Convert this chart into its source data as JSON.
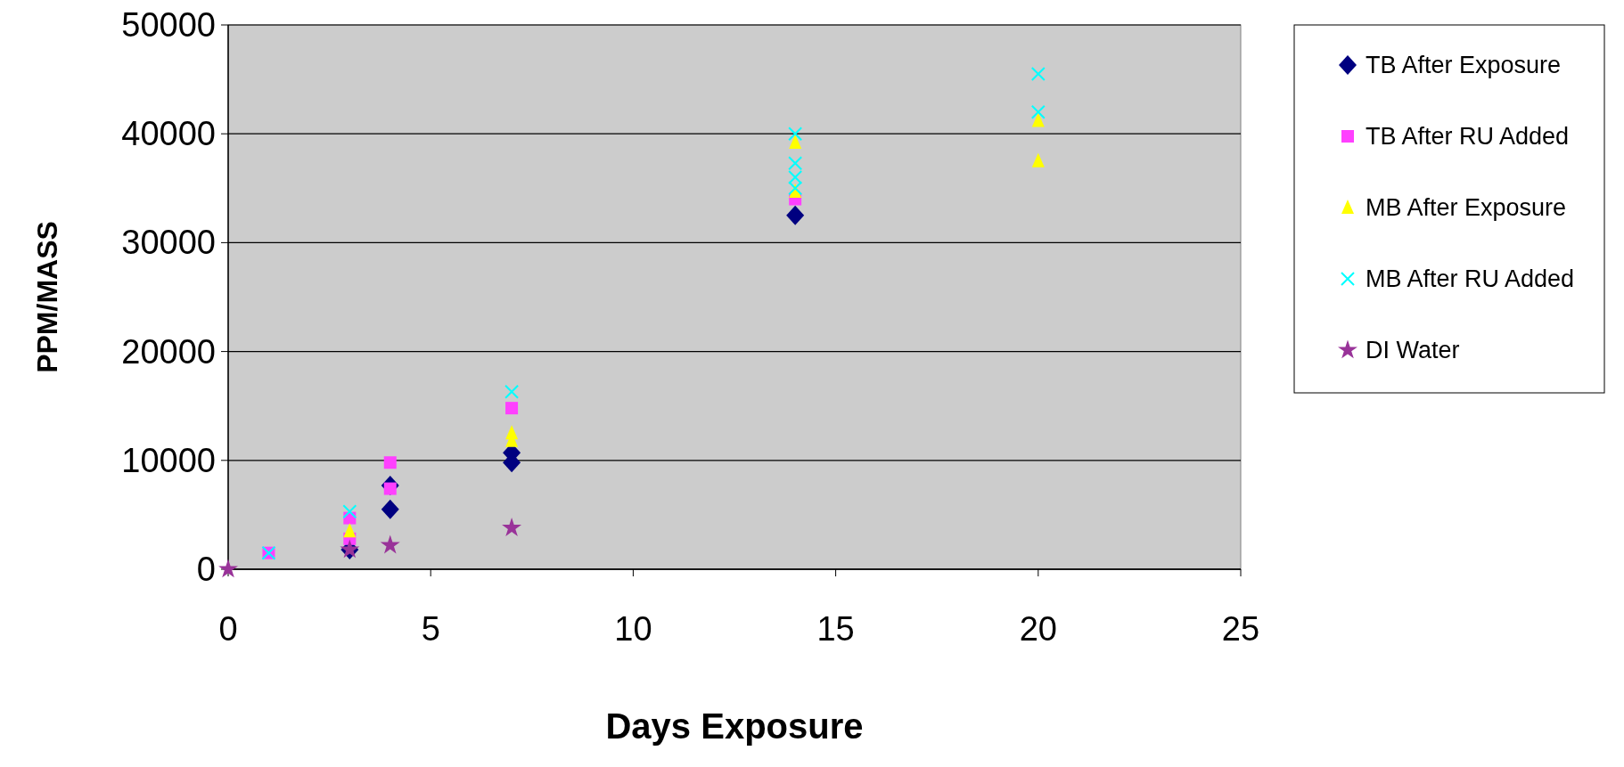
{
  "chart_data": {
    "type": "scatter",
    "xlabel": "Days Exposure",
    "ylabel": "PPM/MASS",
    "xlim": [
      0,
      25
    ],
    "xticks": [
      0,
      5,
      10,
      15,
      20,
      25
    ],
    "ylim": [
      0,
      50000
    ],
    "yticks": [
      0,
      10000,
      20000,
      30000,
      40000,
      50000
    ],
    "grid": "y",
    "legend": "right",
    "series": [
      {
        "name": "TB After Exposure",
        "color": "#000080",
        "marker": "diamond",
        "x": [
          3,
          4,
          4,
          7,
          7,
          14
        ],
        "values": [
          1800,
          7700,
          5500,
          10700,
          9800,
          32500
        ]
      },
      {
        "name": "TB After RU Added",
        "color": "#ff40ff",
        "marker": "square",
        "x": [
          1,
          3,
          3,
          4,
          4,
          7,
          14
        ],
        "values": [
          1500,
          2800,
          4700,
          9800,
          7400,
          14800,
          34000
        ]
      },
      {
        "name": "MB After Exposure",
        "color": "#ffff00",
        "marker": "triangle",
        "x": [
          3,
          7,
          7,
          14,
          14,
          20,
          20
        ],
        "values": [
          3500,
          12500,
          11800,
          39200,
          34700,
          41200,
          37500
        ]
      },
      {
        "name": "MB After RU Added",
        "color": "#00ffff",
        "marker": "cross",
        "x": [
          1,
          3,
          7,
          14,
          14,
          14,
          14,
          20,
          20
        ],
        "values": [
          1500,
          5300,
          16300,
          40000,
          37300,
          36000,
          35000,
          45500,
          42000
        ]
      },
      {
        "name": "DI Water",
        "color": "#993399",
        "marker": "star",
        "x": [
          0,
          3,
          4,
          7
        ],
        "values": [
          0,
          1800,
          2200,
          3800
        ]
      }
    ]
  }
}
